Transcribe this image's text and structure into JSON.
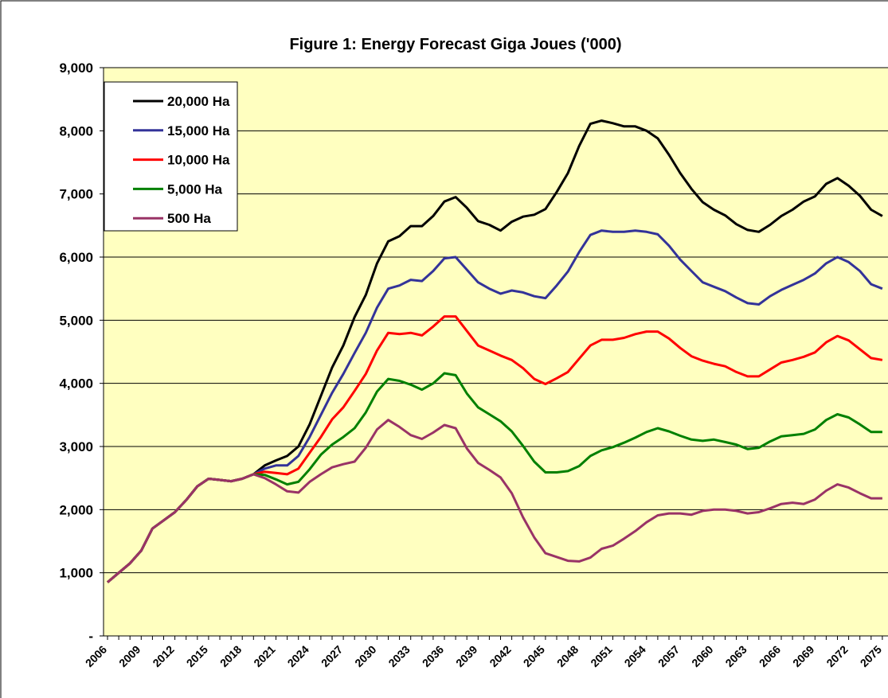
{
  "chart_data": {
    "type": "line",
    "title": "Figure 1: Energy Forecast Giga Joues ('000)",
    "categories": [
      "2006",
      null,
      null,
      "2009",
      null,
      null,
      "2012",
      null,
      null,
      "2015",
      null,
      null,
      "2018",
      null,
      null,
      "2021",
      null,
      null,
      "2024",
      null,
      null,
      "2027",
      null,
      null,
      "2030",
      null,
      null,
      "2033",
      null,
      null,
      "2036",
      null,
      null,
      "2039",
      null,
      null,
      "2042",
      null,
      null,
      "2045",
      null,
      null,
      "2048",
      null,
      null,
      "2051",
      null,
      null,
      "2054",
      null,
      null,
      "2057",
      null,
      null,
      "2060",
      null,
      null,
      "2063",
      null,
      null,
      "2066",
      null,
      null,
      "2069",
      null,
      null,
      "2072",
      null,
      null,
      "2075"
    ],
    "ylim": [
      0,
      9000
    ],
    "yticks": [
      {
        "value": 0,
        "label": "-"
      },
      {
        "value": 1000,
        "label": "1,000"
      },
      {
        "value": 2000,
        "label": "2,000"
      },
      {
        "value": 3000,
        "label": "3,000"
      },
      {
        "value": 4000,
        "label": "4,000"
      },
      {
        "value": 5000,
        "label": "5,000"
      },
      {
        "value": 6000,
        "label": "6,000"
      },
      {
        "value": 7000,
        "label": "7,000"
      },
      {
        "value": 8000,
        "label": "8,000"
      },
      {
        "value": 9000,
        "label": "9,000"
      }
    ],
    "grid": true,
    "legend": "top-left",
    "series": [
      {
        "name": "20,000 Ha",
        "color": "#000000",
        "values": [
          850,
          1000,
          1150,
          1350,
          1700,
          1830,
          1960,
          2150,
          2370,
          2490,
          2470,
          2450,
          2490,
          2560,
          2700,
          2780,
          2850,
          3000,
          3350,
          3800,
          4250,
          4600,
          5050,
          5400,
          5900,
          6250,
          6330,
          6490,
          6490,
          6650,
          6880,
          6950,
          6780,
          6570,
          6510,
          6420,
          6560,
          6640,
          6670,
          6760,
          7030,
          7330,
          7760,
          8110,
          8160,
          8120,
          8070,
          8070,
          8000,
          7880,
          7620,
          7330,
          7080,
          6870,
          6750,
          6660,
          6520,
          6430,
          6400,
          6510,
          6650,
          6750,
          6880,
          6960,
          7160,
          7250,
          7130,
          6970,
          6750,
          6650
        ]
      },
      {
        "name": "15,000 Ha",
        "color": "#333399",
        "values": [
          850,
          1000,
          1150,
          1350,
          1700,
          1830,
          1960,
          2150,
          2370,
          2490,
          2470,
          2450,
          2490,
          2560,
          2650,
          2700,
          2700,
          2850,
          3150,
          3500,
          3850,
          4150,
          4480,
          4800,
          5200,
          5500,
          5550,
          5640,
          5620,
          5780,
          5980,
          6000,
          5800,
          5600,
          5500,
          5420,
          5470,
          5440,
          5380,
          5350,
          5550,
          5770,
          6080,
          6350,
          6420,
          6400,
          6400,
          6420,
          6400,
          6360,
          6180,
          5960,
          5780,
          5600,
          5530,
          5460,
          5360,
          5270,
          5250,
          5380,
          5480,
          5560,
          5640,
          5740,
          5900,
          6000,
          5920,
          5780,
          5570,
          5500
        ]
      },
      {
        "name": "10,000 Ha",
        "color": "#ff0000",
        "values": [
          850,
          1000,
          1150,
          1350,
          1700,
          1830,
          1960,
          2150,
          2370,
          2490,
          2470,
          2450,
          2490,
          2560,
          2600,
          2580,
          2560,
          2650,
          2900,
          3150,
          3430,
          3620,
          3880,
          4150,
          4520,
          4800,
          4780,
          4800,
          4760,
          4900,
          5060,
          5060,
          4830,
          4600,
          4520,
          4440,
          4370,
          4240,
          4070,
          3990,
          4080,
          4180,
          4390,
          4600,
          4690,
          4690,
          4720,
          4780,
          4820,
          4820,
          4710,
          4560,
          4430,
          4360,
          4310,
          4270,
          4180,
          4110,
          4110,
          4220,
          4330,
          4370,
          4420,
          4490,
          4650,
          4750,
          4680,
          4540,
          4400,
          4370
        ]
      },
      {
        "name": "5,000 Ha",
        "color": "#008000",
        "values": [
          850,
          1000,
          1150,
          1350,
          1700,
          1830,
          1960,
          2150,
          2370,
          2490,
          2470,
          2450,
          2490,
          2560,
          2550,
          2480,
          2400,
          2440,
          2640,
          2870,
          3030,
          3150,
          3290,
          3540,
          3870,
          4070,
          4040,
          3980,
          3900,
          4000,
          4160,
          4130,
          3840,
          3620,
          3510,
          3400,
          3240,
          3010,
          2760,
          2590,
          2590,
          2610,
          2690,
          2850,
          2940,
          2990,
          3060,
          3140,
          3230,
          3290,
          3240,
          3170,
          3110,
          3090,
          3110,
          3070,
          3030,
          2960,
          2980,
          3080,
          3160,
          3180,
          3200,
          3270,
          3420,
          3510,
          3460,
          3350,
          3230,
          3230
        ]
      },
      {
        "name": "500 Ha",
        "color": "#993366",
        "values": [
          850,
          1000,
          1150,
          1350,
          1700,
          1830,
          1960,
          2150,
          2370,
          2490,
          2470,
          2450,
          2490,
          2560,
          2500,
          2400,
          2290,
          2270,
          2440,
          2560,
          2670,
          2720,
          2760,
          2980,
          3270,
          3420,
          3310,
          3180,
          3120,
          3220,
          3340,
          3290,
          2970,
          2740,
          2630,
          2510,
          2260,
          1880,
          1560,
          1310,
          1250,
          1190,
          1180,
          1240,
          1380,
          1430,
          1540,
          1660,
          1800,
          1910,
          1940,
          1940,
          1920,
          1980,
          2000,
          2000,
          1980,
          1940,
          1960,
          2020,
          2090,
          2110,
          2090,
          2160,
          2300,
          2400,
          2350,
          2260,
          2180,
          2180
        ]
      }
    ]
  }
}
